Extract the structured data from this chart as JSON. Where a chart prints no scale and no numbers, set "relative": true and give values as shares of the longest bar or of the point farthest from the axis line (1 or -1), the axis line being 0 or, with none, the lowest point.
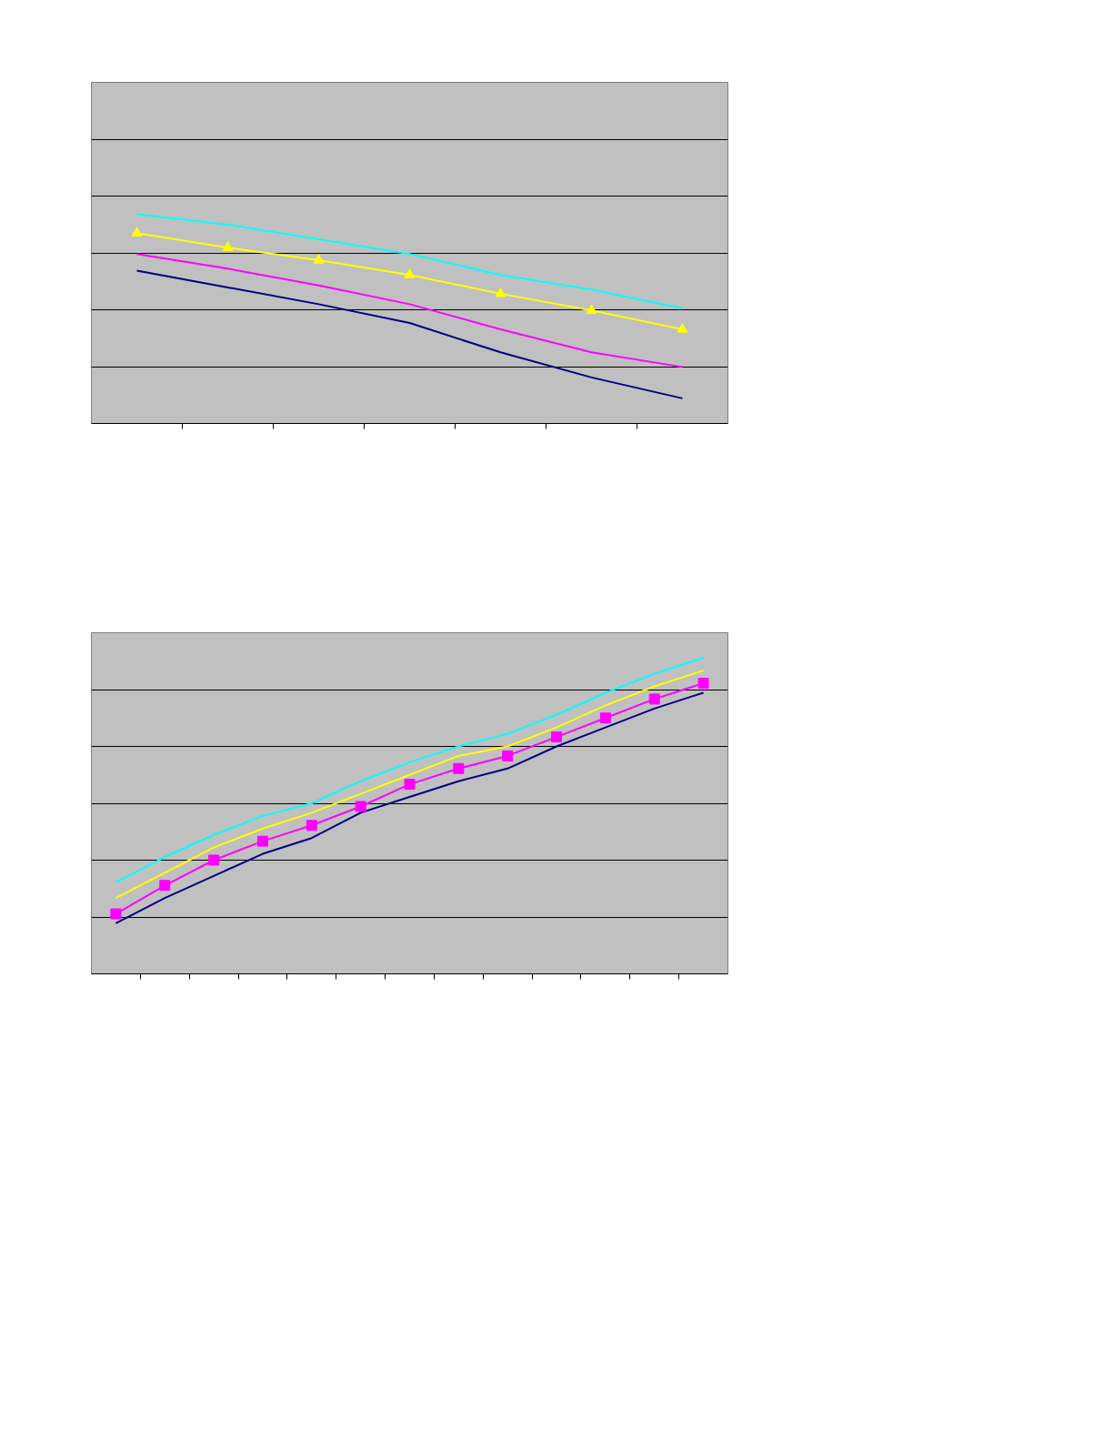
{
  "chart_data": [
    {
      "type": "line",
      "relative": true,
      "categories": [
        null,
        null,
        null,
        null,
        null,
        null,
        null
      ],
      "grid": "y",
      "series": [
        {
          "color": "#000080",
          "values": [
            0.73,
            0.65,
            0.57,
            0.48,
            0.34,
            0.22,
            0.12
          ]
        },
        {
          "color": "#ff00ff",
          "values": [
            0.81,
            0.74,
            0.66,
            0.57,
            0.45,
            0.34,
            0.27
          ]
        },
        {
          "color": "#ffff00",
          "marker": "triangle",
          "values": [
            0.91,
            0.84,
            0.78,
            0.71,
            0.62,
            0.54,
            0.45
          ]
        },
        {
          "color": "#00ffff",
          "values": [
            1,
            0.95,
            0.88,
            0.81,
            0.71,
            0.64,
            0.55
          ]
        }
      ]
    },
    {
      "type": "line",
      "relative": true,
      "categories": [
        null,
        null,
        null,
        null,
        null,
        null,
        null,
        null,
        null,
        null,
        null,
        null,
        null
      ],
      "grid": "y",
      "series": [
        {
          "color": "#000080",
          "values": [
            0.16,
            0.24,
            0.31,
            0.38,
            0.43,
            0.51,
            0.56,
            0.61,
            0.65,
            0.72,
            0.78,
            0.84,
            0.89
          ]
        },
        {
          "color": "#ff00ff",
          "marker": "square",
          "values": [
            0.19,
            0.28,
            0.36,
            0.42,
            0.47,
            0.53,
            0.6,
            0.65,
            0.69,
            0.75,
            0.81,
            0.87,
            0.92
          ]
        },
        {
          "color": "#ffff00",
          "values": [
            0.24,
            0.32,
            0.4,
            0.46,
            0.51,
            0.57,
            0.63,
            0.69,
            0.72,
            0.78,
            0.85,
            0.91,
            0.96
          ]
        },
        {
          "color": "#00ffff",
          "values": [
            0.29,
            0.37,
            0.44,
            0.5,
            0.54,
            0.61,
            0.67,
            0.72,
            0.76,
            0.82,
            0.89,
            0.95,
            1
          ]
        }
      ]
    }
  ]
}
